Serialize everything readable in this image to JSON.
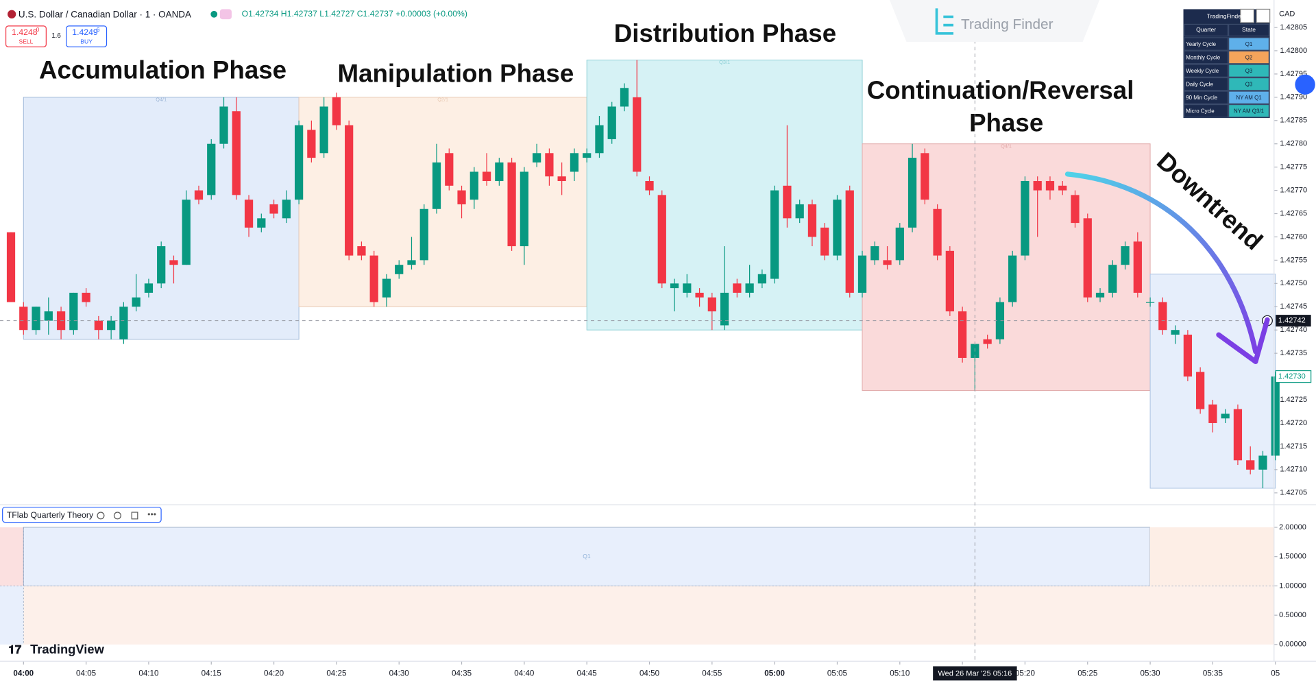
{
  "header": {
    "symbol": "U.S. Dollar / Canadian Dollar · 1 · OANDA",
    "ohlc": "O1.42734 H1.42737 L1.42727 C1.42737 +0.00003 (+0.00%)",
    "sell_price": "1.4248",
    "sell_price_sup": "0",
    "sell_label": "SELL",
    "spread": "1.6",
    "buy_price": "1.4249",
    "buy_price_sup": "6",
    "buy_label": "BUY",
    "currency": "CAD"
  },
  "brand": {
    "logo": "Trading Finder",
    "platform": "TradingView"
  },
  "cycle_table": {
    "title": "TradingFinder",
    "columns": [
      "Quarter",
      "State"
    ],
    "rows": [
      [
        "Yearly Cycle",
        "Q1"
      ],
      [
        "Monthly Cycle",
        "Q2"
      ],
      [
        "Weekly Cycle",
        "Q3"
      ],
      [
        "Daily Cycle",
        "Q3"
      ],
      [
        "90 Min Cycle",
        "NY AM Q1"
      ],
      [
        "Micro Cycle",
        "NY AM Q3/1"
      ]
    ]
  },
  "chart_data": {
    "type": "candlestick",
    "up_color": "#089981",
    "down_color": "#f23645",
    "x": [
      "03:59",
      "04:00",
      "04:01",
      "04:02",
      "04:03",
      "04:04",
      "04:05",
      "04:06",
      "04:07",
      "04:08",
      "04:09",
      "04:10",
      "04:11",
      "04:12",
      "04:13",
      "04:14",
      "04:15",
      "04:16",
      "04:17",
      "04:18",
      "04:19",
      "04:20",
      "04:21",
      "04:22",
      "04:23",
      "04:24",
      "04:25",
      "04:26",
      "04:27",
      "04:28",
      "04:29",
      "04:30",
      "04:31",
      "04:32",
      "04:33",
      "04:34",
      "04:35",
      "04:36",
      "04:37",
      "04:38",
      "04:39",
      "04:40",
      "04:41",
      "04:42",
      "04:43",
      "04:44",
      "04:45",
      "04:46",
      "04:47",
      "04:48",
      "04:49",
      "04:50",
      "04:51",
      "04:52",
      "04:53",
      "04:54",
      "04:55",
      "04:56",
      "04:57",
      "04:58",
      "04:59",
      "05:00",
      "05:01",
      "05:02",
      "05:03",
      "05:04",
      "05:05",
      "05:06",
      "05:07",
      "05:08",
      "05:09",
      "05:10",
      "05:11",
      "05:12",
      "05:13",
      "05:14",
      "05:15",
      "05:16",
      "05:17",
      "05:18",
      "05:19",
      "05:20",
      "05:21",
      "05:22",
      "05:23",
      "05:24",
      "05:25",
      "05:26",
      "05:27",
      "05:28",
      "05:29",
      "05:30",
      "05:31",
      "05:32",
      "05:33",
      "05:34",
      "05:35",
      "05:36",
      "05:37",
      "05:38",
      "05:39",
      "05:40"
    ],
    "open": [
      1.42761,
      1.42745,
      1.4274,
      1.42742,
      1.42744,
      1.4274,
      1.42748,
      1.42742,
      1.4274,
      1.42738,
      1.42745,
      1.42748,
      1.4275,
      1.42755,
      1.42754,
      1.4277,
      1.42769,
      1.4278,
      1.42787,
      1.42768,
      1.42762,
      1.42767,
      1.42764,
      1.42768,
      1.42783,
      1.42778,
      1.4279,
      1.42784,
      1.42758,
      1.42756,
      1.42747,
      1.42752,
      1.42754,
      1.42755,
      1.42766,
      1.42778,
      1.4277,
      1.42768,
      1.42774,
      1.42772,
      1.42776,
      1.42758,
      1.42776,
      1.42778,
      1.42773,
      1.42774,
      1.42777,
      1.42778,
      1.42781,
      1.42788,
      1.4279,
      1.42772,
      1.42769,
      1.42749,
      1.42748,
      1.42748,
      1.42747,
      1.42741,
      1.4275,
      1.42748,
      1.4275,
      1.42751,
      1.42771,
      1.42764,
      1.42767,
      1.42762,
      1.42756,
      1.4277,
      1.42748,
      1.42755,
      1.42755,
      1.42755,
      1.42762,
      1.42778,
      1.42766,
      1.42757,
      1.42744,
      1.42734,
      1.42738,
      1.42738,
      1.42746,
      1.42756,
      1.42772,
      1.42772,
      1.42771,
      1.42769,
      1.42764,
      1.42747,
      1.42748,
      1.42754,
      1.42759,
      1.42746,
      1.42746,
      1.42739,
      1.42739,
      1.42731,
      1.42724,
      1.42721,
      1.42723,
      1.42712,
      1.4271,
      1.42713
    ],
    "high": [
      1.42761,
      1.42746,
      1.42745,
      1.42747,
      1.42745,
      1.42748,
      1.42749,
      1.42743,
      1.42743,
      1.42746,
      1.42752,
      1.42751,
      1.42759,
      1.42756,
      1.4277,
      1.42771,
      1.42781,
      1.4279,
      1.4279,
      1.42769,
      1.42765,
      1.42768,
      1.4277,
      1.42785,
      1.42785,
      1.4279,
      1.42791,
      1.42785,
      1.42759,
      1.42757,
      1.42752,
      1.42755,
      1.4276,
      1.42767,
      1.4278,
      1.42779,
      1.42771,
      1.42775,
      1.42778,
      1.42777,
      1.42777,
      1.42775,
      1.4278,
      1.42779,
      1.42776,
      1.42779,
      1.42779,
      1.42786,
      1.42789,
      1.42793,
      1.42798,
      1.42773,
      1.4277,
      1.42751,
      1.42752,
      1.42749,
      1.42748,
      1.42758,
      1.42751,
      1.42754,
      1.42753,
      1.42771,
      1.42784,
      1.42768,
      1.42768,
      1.42763,
      1.42769,
      1.42771,
      1.42757,
      1.42759,
      1.42758,
      1.42763,
      1.4278,
      1.42779,
      1.42767,
      1.42758,
      1.42745,
      1.42737,
      1.42739,
      1.42747,
      1.42757,
      1.42773,
      1.42773,
      1.42773,
      1.42772,
      1.4277,
      1.42765,
      1.42749,
      1.42755,
      1.42759,
      1.42761,
      1.42747,
      1.42747,
      1.42741,
      1.4274,
      1.42732,
      1.42725,
      1.42723,
      1.42724,
      1.42715,
      1.42714,
      1.42731
    ],
    "low": [
      1.42746,
      1.42739,
      1.42739,
      1.42739,
      1.42738,
      1.42739,
      1.42745,
      1.42738,
      1.42738,
      1.42737,
      1.42744,
      1.42747,
      1.42749,
      1.4275,
      1.42754,
      1.42767,
      1.42768,
      1.42779,
      1.42768,
      1.4276,
      1.42761,
      1.42764,
      1.42763,
      1.42767,
      1.42776,
      1.42777,
      1.42783,
      1.42755,
      1.42755,
      1.42745,
      1.42745,
      1.42751,
      1.42753,
      1.42754,
      1.42765,
      1.4277,
      1.42764,
      1.42766,
      1.42771,
      1.42771,
      1.42757,
      1.42754,
      1.42775,
      1.42771,
      1.42769,
      1.42772,
      1.42776,
      1.42777,
      1.4278,
      1.42787,
      1.42773,
      1.42769,
      1.42749,
      1.42744,
      1.42747,
      1.42745,
      1.4274,
      1.4274,
      1.42747,
      1.42747,
      1.42749,
      1.4275,
      1.42762,
      1.42763,
      1.42758,
      1.42755,
      1.42755,
      1.42747,
      1.42747,
      1.42754,
      1.42753,
      1.42754,
      1.42761,
      1.42767,
      1.42755,
      1.42743,
      1.42733,
      1.42727,
      1.42736,
      1.42737,
      1.42745,
      1.42755,
      1.4276,
      1.42768,
      1.42769,
      1.42762,
      1.42746,
      1.42746,
      1.42747,
      1.42753,
      1.42747,
      1.42745,
      1.42739,
      1.42737,
      1.42729,
      1.42722,
      1.42718,
      1.4272,
      1.42711,
      1.42709,
      1.42706,
      1.42712
    ],
    "close": [
      1.42746,
      1.4274,
      1.42745,
      1.42744,
      1.4274,
      1.42748,
      1.42746,
      1.4274,
      1.42742,
      1.42745,
      1.42747,
      1.4275,
      1.42758,
      1.42754,
      1.42768,
      1.42768,
      1.4278,
      1.42788,
      1.42769,
      1.42762,
      1.42764,
      1.42765,
      1.42768,
      1.42784,
      1.42777,
      1.42788,
      1.42784,
      1.42756,
      1.42756,
      1.42746,
      1.42751,
      1.42754,
      1.42755,
      1.42766,
      1.42776,
      1.42771,
      1.42767,
      1.42774,
      1.42772,
      1.42776,
      1.42758,
      1.42774,
      1.42778,
      1.42773,
      1.42772,
      1.42778,
      1.42778,
      1.42784,
      1.42788,
      1.42792,
      1.42774,
      1.4277,
      1.4275,
      1.4275,
      1.4275,
      1.42747,
      1.42744,
      1.42748,
      1.42748,
      1.4275,
      1.42752,
      1.4277,
      1.42764,
      1.42767,
      1.4276,
      1.42756,
      1.42768,
      1.42748,
      1.42756,
      1.42758,
      1.42754,
      1.42762,
      1.42777,
      1.42768,
      1.42756,
      1.42744,
      1.42734,
      1.42737,
      1.42737,
      1.42746,
      1.42756,
      1.42772,
      1.4277,
      1.4277,
      1.4277,
      1.42763,
      1.42747,
      1.42748,
      1.42754,
      1.42758,
      1.42748,
      1.42746,
      1.4274,
      1.4274,
      1.4273,
      1.42723,
      1.4272,
      1.42722,
      1.42712,
      1.4271,
      1.42713,
      1.4273
    ],
    "ylim": [
      1.42703,
      1.4281
    ],
    "yticks": [
      {
        "value": 1.42705,
        "label": "1.42705"
      },
      {
        "value": 1.4271,
        "label": "1.42710"
      },
      {
        "value": 1.42715,
        "label": "1.42715"
      },
      {
        "value": 1.4272,
        "label": "1.42720"
      },
      {
        "value": 1.42725,
        "label": "1.42725"
      },
      {
        "value": 1.4273,
        "label": "1.42730"
      },
      {
        "value": 1.42735,
        "label": "1.42735"
      },
      {
        "value": 1.4274,
        "label": "1.42740"
      },
      {
        "value": 1.42745,
        "label": "1.42745"
      },
      {
        "value": 1.4275,
        "label": "1.42750"
      },
      {
        "value": 1.42755,
        "label": "1.42755"
      },
      {
        "value": 1.4276,
        "label": "1.42760"
      },
      {
        "value": 1.42765,
        "label": "1.42765"
      },
      {
        "value": 1.4277,
        "label": "1.42770"
      },
      {
        "value": 1.42775,
        "label": "1.42775"
      },
      {
        "value": 1.4278,
        "label": "1.42780"
      },
      {
        "value": 1.42785,
        "label": "1.42785"
      },
      {
        "value": 1.4279,
        "label": "1.42790"
      },
      {
        "value": 1.42795,
        "label": "1.42795"
      },
      {
        "value": 1.428,
        "label": "1.42800"
      },
      {
        "value": 1.42805,
        "label": "1.42805"
      }
    ],
    "xticks": [
      "04:00",
      "04:05",
      "04:10",
      "04:15",
      "04:20",
      "04:25",
      "04:30",
      "04:35",
      "04:40",
      "04:45",
      "04:50",
      "04:55",
      "05:00",
      "05:05",
      "05:10",
      "05:15",
      "05:20",
      "05:25",
      "05:30",
      "05:35",
      {
        "value": "05:40",
        "label": "05"
      }
    ],
    "zones": [
      {
        "from": "04:00",
        "to": "04:22",
        "high": 1.4279,
        "low": 1.42738,
        "label": "Q4/1",
        "color": "#e3ecfa",
        "border": "#9fb8d8"
      },
      {
        "from": "04:22",
        "to": "04:45",
        "high": 1.4279,
        "low": 1.42745,
        "label": "Q2/1",
        "color": "#fdefe4",
        "border": "#e8c9b3"
      },
      {
        "from": "04:45",
        "to": "05:07",
        "high": 1.42798,
        "low": 1.4274,
        "label": "Q3/1",
        "color": "#d6f2f5",
        "border": "#8ccfd6"
      },
      {
        "from": "05:07",
        "to": "05:30",
        "high": 1.4278,
        "low": 1.42727,
        "label": "Q4/1",
        "color": "#fadada",
        "border": "#e1a9a9"
      },
      {
        "from": "05:30",
        "to": "05:40",
        "high": 1.42752,
        "low": 1.42706,
        "color": "#e6eefb",
        "border": "#a9c2e2"
      }
    ],
    "annotations": [
      "Accumulation Phase",
      "Manipulation Phase",
      "Distribution Phase",
      "Continuation/Reversal",
      "Phase",
      "Downtrend"
    ],
    "crosshair": {
      "x": "05:16",
      "x_label": "Wed 26 Mar '25   05:16",
      "y": 1.42742
    },
    "last_price": {
      "value": 1.4273,
      "label": "1.42730"
    }
  },
  "indicator": {
    "name": "TFlab Quarterly Theory",
    "ylim": [
      0,
      2
    ],
    "yticks": [
      {
        "value": 2,
        "label": "2.00000"
      },
      {
        "value": 1.5,
        "label": "1.50000"
      },
      {
        "value": 1,
        "label": "1.00000"
      },
      {
        "value": 0.5,
        "label": "0.50000"
      },
      {
        "value": 0,
        "label": "0.00000"
      }
    ],
    "zone_label": "Q1"
  }
}
